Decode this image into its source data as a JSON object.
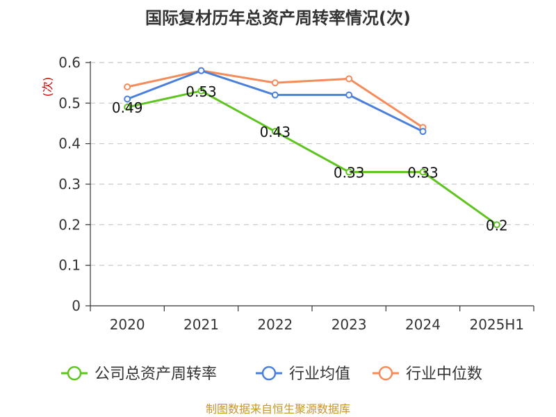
{
  "chart_data": {
    "type": "line",
    "title": "国际复材历年总资产周转率情况(次)",
    "ylabel": "(次)",
    "xlabel": "",
    "categories": [
      "2020",
      "2021",
      "2022",
      "2023",
      "2024",
      "2025H1"
    ],
    "ylim": [
      0,
      0.6
    ],
    "yticks": [
      "0",
      "0.1",
      "0.2",
      "0.3",
      "0.4",
      "0.5",
      "0.6"
    ],
    "grid": true,
    "legend_position": "bottom",
    "series": [
      {
        "name": "公司总资产周转率",
        "color": "#5fc41f",
        "values": [
          0.49,
          0.53,
          0.43,
          0.33,
          0.33,
          0.2
        ],
        "labels": [
          "0.49",
          "0.53",
          "0.43",
          "0.33",
          "0.33",
          "0.2"
        ]
      },
      {
        "name": "行业均值",
        "color": "#4a7fdb",
        "values": [
          0.51,
          0.58,
          0.52,
          0.52,
          0.43,
          null
        ]
      },
      {
        "name": "行业中位数",
        "color": "#f58b5a",
        "values": [
          0.54,
          0.58,
          0.55,
          0.56,
          0.44,
          null
        ]
      }
    ]
  },
  "unit_color": "#cc0000",
  "source": {
    "text": "制图数据来自恒生聚源数据库",
    "color": "#c8942a"
  }
}
